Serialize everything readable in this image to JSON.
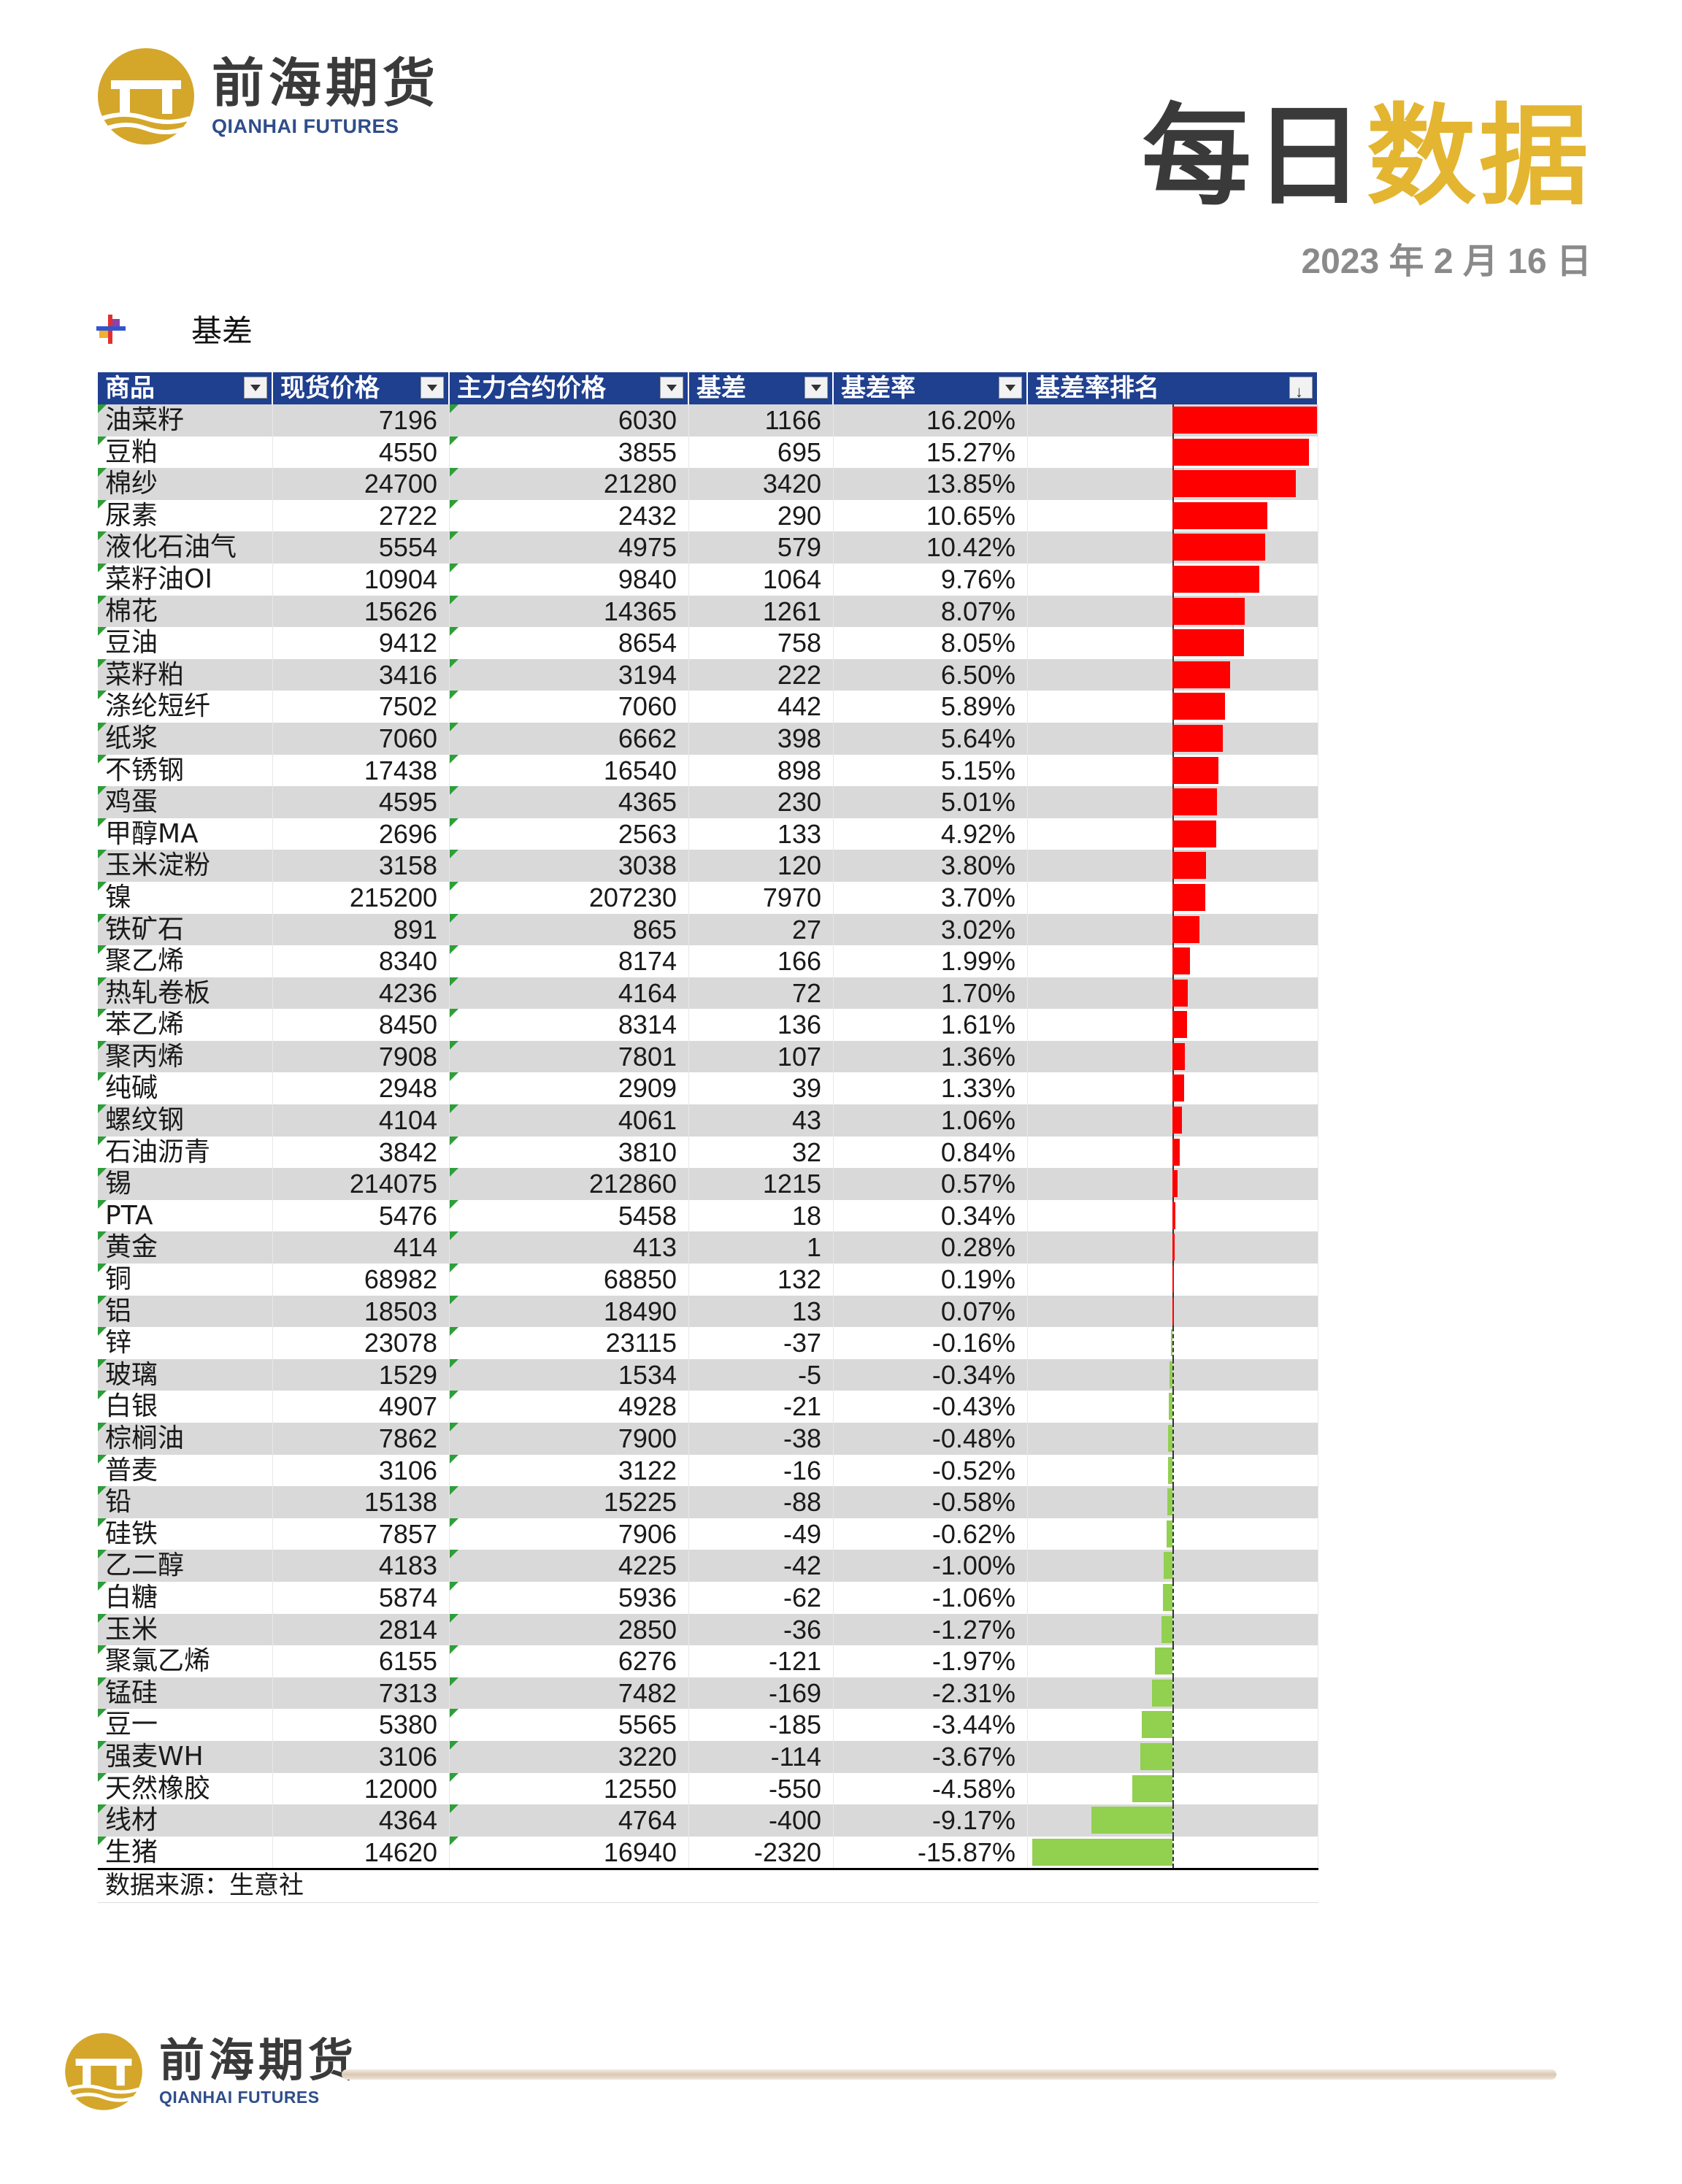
{
  "brand": {
    "name_cn": "前海期货",
    "name_en": "QIANHAI FUTURES",
    "gold": "#d4a62a",
    "navy": "#1f3f8f"
  },
  "header": {
    "title_part1": "每日",
    "title_part2": "数据",
    "date": "2023 年 2 月 16 日"
  },
  "section": {
    "label": "基差",
    "icon": "cross-marker-icon"
  },
  "table": {
    "columns": [
      "商品",
      "现货价格",
      "主力合约价格",
      "基差",
      "基差率",
      "基差率排名"
    ],
    "rows": [
      [
        "油菜籽",
        "7196",
        "6030",
        "1166",
        "16.20%"
      ],
      [
        "豆粕",
        "4550",
        "3855",
        "695",
        "15.27%"
      ],
      [
        "棉纱",
        "24700",
        "21280",
        "3420",
        "13.85%"
      ],
      [
        "尿素",
        "2722",
        "2432",
        "290",
        "10.65%"
      ],
      [
        "液化石油气",
        "5554",
        "4975",
        "579",
        "10.42%"
      ],
      [
        "菜籽油OI",
        "10904",
        "9840",
        "1064",
        "9.76%"
      ],
      [
        "棉花",
        "15626",
        "14365",
        "1261",
        "8.07%"
      ],
      [
        "豆油",
        "9412",
        "8654",
        "758",
        "8.05%"
      ],
      [
        "菜籽粕",
        "3416",
        "3194",
        "222",
        "6.50%"
      ],
      [
        "涤纶短纤",
        "7502",
        "7060",
        "442",
        "5.89%"
      ],
      [
        "纸浆",
        "7060",
        "6662",
        "398",
        "5.64%"
      ],
      [
        "不锈钢",
        "17438",
        "16540",
        "898",
        "5.15%"
      ],
      [
        "鸡蛋",
        "4595",
        "4365",
        "230",
        "5.01%"
      ],
      [
        "甲醇MA",
        "2696",
        "2563",
        "133",
        "4.92%"
      ],
      [
        "玉米淀粉",
        "3158",
        "3038",
        "120",
        "3.80%"
      ],
      [
        "镍",
        "215200",
        "207230",
        "7970",
        "3.70%"
      ],
      [
        "铁矿石",
        "891",
        "865",
        "27",
        "3.02%"
      ],
      [
        "聚乙烯",
        "8340",
        "8174",
        "166",
        "1.99%"
      ],
      [
        "热轧卷板",
        "4236",
        "4164",
        "72",
        "1.70%"
      ],
      [
        "苯乙烯",
        "8450",
        "8314",
        "136",
        "1.61%"
      ],
      [
        "聚丙烯",
        "7908",
        "7801",
        "107",
        "1.36%"
      ],
      [
        "纯碱",
        "2948",
        "2909",
        "39",
        "1.33%"
      ],
      [
        "螺纹钢",
        "4104",
        "4061",
        "43",
        "1.06%"
      ],
      [
        "石油沥青",
        "3842",
        "3810",
        "32",
        "0.84%"
      ],
      [
        "锡",
        "214075",
        "212860",
        "1215",
        "0.57%"
      ],
      [
        "PTA",
        "5476",
        "5458",
        "18",
        "0.34%"
      ],
      [
        "黄金",
        "414",
        "413",
        "1",
        "0.28%"
      ],
      [
        "铜",
        "68982",
        "68850",
        "132",
        "0.19%"
      ],
      [
        "铝",
        "18503",
        "18490",
        "13",
        "0.07%"
      ],
      [
        "锌",
        "23078",
        "23115",
        "-37",
        "-0.16%"
      ],
      [
        "玻璃",
        "1529",
        "1534",
        "-5",
        "-0.34%"
      ],
      [
        "白银",
        "4907",
        "4928",
        "-21",
        "-0.43%"
      ],
      [
        "棕榈油",
        "7862",
        "7900",
        "-38",
        "-0.48%"
      ],
      [
        "普麦",
        "3106",
        "3122",
        "-16",
        "-0.52%"
      ],
      [
        "铅",
        "15138",
        "15225",
        "-88",
        "-0.58%"
      ],
      [
        "硅铁",
        "7857",
        "7906",
        "-49",
        "-0.62%"
      ],
      [
        "乙二醇",
        "4183",
        "4225",
        "-42",
        "-1.00%"
      ],
      [
        "白糖",
        "5874",
        "5936",
        "-62",
        "-1.06%"
      ],
      [
        "玉米",
        "2814",
        "2850",
        "-36",
        "-1.27%"
      ],
      [
        "聚氯乙烯",
        "6155",
        "6276",
        "-121",
        "-1.97%"
      ],
      [
        "锰硅",
        "7313",
        "7482",
        "-169",
        "-2.31%"
      ],
      [
        "豆一",
        "5380",
        "5565",
        "-185",
        "-3.44%"
      ],
      [
        "强麦WH",
        "3106",
        "3220",
        "-114",
        "-3.67%"
      ],
      [
        "天然橡胶",
        "12000",
        "12550",
        "-550",
        "-4.58%"
      ],
      [
        "线材",
        "4364",
        "4764",
        "-400",
        "-9.17%"
      ],
      [
        "生猪",
        "14620",
        "16940",
        "-2320",
        "-15.87%"
      ]
    ],
    "rates": [
      16.2,
      15.27,
      13.85,
      10.65,
      10.42,
      9.76,
      8.07,
      8.05,
      6.5,
      5.89,
      5.64,
      5.15,
      5.01,
      4.92,
      3.8,
      3.7,
      3.02,
      1.99,
      1.7,
      1.61,
      1.36,
      1.33,
      1.06,
      0.84,
      0.57,
      0.34,
      0.28,
      0.19,
      0.07,
      -0.16,
      -0.34,
      -0.43,
      -0.48,
      -0.52,
      -0.58,
      -0.62,
      -1.0,
      -1.06,
      -1.27,
      -1.97,
      -2.31,
      -3.44,
      -3.67,
      -4.58,
      -9.17,
      -15.87
    ],
    "bar_colors": {
      "positive": "#ff0000",
      "negative": "#92d050"
    },
    "source": "数据来源：生意社"
  }
}
